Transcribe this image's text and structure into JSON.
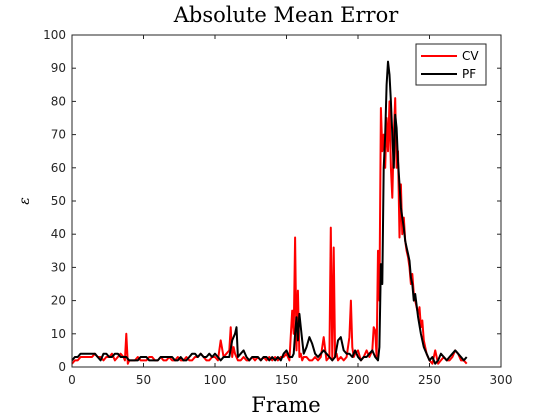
{
  "chart_data": {
    "type": "line",
    "title": "Absolute Mean Error",
    "xlabel": "Frame",
    "ylabel": "ε",
    "xlim": [
      0,
      300
    ],
    "ylim": [
      0,
      100
    ],
    "xticks": [
      0,
      50,
      100,
      150,
      200,
      250,
      300
    ],
    "yticks": [
      0,
      10,
      20,
      30,
      40,
      50,
      60,
      70,
      80,
      90,
      100
    ],
    "legend_position": "top-right",
    "grid": false,
    "series": [
      {
        "name": "CV",
        "color": "#ff0000",
        "x": [
          0,
          2,
          4,
          6,
          8,
          10,
          12,
          14,
          16,
          18,
          20,
          22,
          24,
          26,
          28,
          30,
          32,
          34,
          36,
          37,
          38,
          39,
          40,
          42,
          44,
          46,
          48,
          50,
          52,
          54,
          56,
          58,
          60,
          62,
          64,
          66,
          68,
          70,
          72,
          74,
          76,
          78,
          80,
          82,
          84,
          86,
          88,
          90,
          92,
          94,
          96,
          98,
          100,
          102,
          104,
          106,
          108,
          110,
          111,
          112,
          113,
          114,
          116,
          118,
          120,
          122,
          124,
          126,
          128,
          130,
          132,
          134,
          136,
          138,
          140,
          142,
          144,
          146,
          148,
          150,
          152,
          154,
          155,
          156,
          157,
          158,
          159,
          160,
          161,
          162,
          164,
          166,
          168,
          170,
          172,
          174,
          176,
          178,
          180,
          181,
          182,
          183,
          184,
          185,
          186,
          188,
          190,
          192,
          194,
          195,
          196,
          197,
          198,
          200,
          202,
          204,
          206,
          208,
          210,
          211,
          212,
          213,
          214,
          215,
          216,
          217,
          218,
          219,
          220,
          221,
          222,
          223,
          224,
          225,
          226,
          227,
          228,
          229,
          230,
          231,
          232,
          233,
          234,
          235,
          236,
          237,
          238,
          239,
          240,
          241,
          242,
          243,
          244,
          245,
          246,
          248,
          250,
          252,
          254,
          256,
          258,
          260,
          262,
          264,
          266,
          268,
          270,
          272,
          274,
          276
        ],
        "values": [
          1,
          2,
          2,
          3,
          3,
          3,
          3,
          3,
          4,
          3,
          3,
          2,
          3,
          3,
          4,
          2,
          3,
          4,
          3,
          2,
          10,
          1,
          2,
          2,
          2,
          3,
          2,
          2,
          2,
          3,
          3,
          2,
          2,
          3,
          2,
          2,
          3,
          2,
          2,
          3,
          2,
          2,
          3,
          2,
          2,
          3,
          3,
          4,
          3,
          2,
          2,
          3,
          3,
          2,
          8,
          3,
          4,
          5,
          12,
          3,
          6,
          4,
          2,
          2,
          3,
          2,
          2,
          3,
          2,
          3,
          2,
          3,
          2,
          3,
          2,
          3,
          2,
          3,
          3,
          4,
          2,
          17,
          10,
          39,
          5,
          23,
          3,
          4,
          2,
          3,
          3,
          2,
          2,
          3,
          2,
          3,
          9,
          2,
          3,
          42,
          2,
          36,
          3,
          4,
          2,
          3,
          2,
          3,
          9,
          20,
          6,
          3,
          4,
          5,
          2,
          3,
          5,
          3,
          5,
          12,
          11,
          3,
          35,
          20,
          78,
          65,
          70,
          60,
          75,
          65,
          80,
          60,
          51,
          70,
          81,
          60,
          65,
          39,
          55,
          40,
          45,
          38,
          35,
          33,
          30,
          25,
          28,
          22,
          20,
          18,
          16,
          18,
          12,
          14,
          8,
          4,
          2,
          1,
          5,
          1,
          2,
          3,
          2,
          2,
          3,
          5,
          4,
          2,
          2,
          1
        ]
      },
      {
        "name": "PF",
        "color": "#000000",
        "x": [
          0,
          2,
          4,
          6,
          8,
          10,
          12,
          14,
          16,
          18,
          20,
          22,
          24,
          26,
          28,
          30,
          32,
          34,
          36,
          38,
          40,
          42,
          44,
          46,
          48,
          50,
          52,
          54,
          56,
          58,
          60,
          62,
          64,
          66,
          68,
          70,
          72,
          74,
          76,
          78,
          80,
          82,
          84,
          86,
          88,
          90,
          92,
          94,
          96,
          98,
          100,
          102,
          104,
          106,
          108,
          110,
          112,
          114,
          115,
          116,
          118,
          120,
          122,
          124,
          126,
          128,
          130,
          132,
          134,
          136,
          138,
          140,
          142,
          144,
          146,
          148,
          150,
          152,
          154,
          155,
          156,
          157,
          158,
          159,
          160,
          161,
          162,
          164,
          166,
          168,
          170,
          172,
          174,
          176,
          178,
          180,
          182,
          184,
          186,
          188,
          190,
          192,
          194,
          196,
          198,
          200,
          202,
          204,
          206,
          208,
          210,
          212,
          214,
          215,
          216,
          217,
          218,
          219,
          220,
          221,
          222,
          223,
          224,
          225,
          226,
          227,
          228,
          229,
          230,
          231,
          232,
          233,
          234,
          235,
          236,
          237,
          238,
          239,
          240,
          242,
          244,
          246,
          248,
          250,
          252,
          254,
          256,
          258,
          260,
          262,
          264,
          266,
          268,
          270,
          272,
          274,
          276
        ],
        "values": [
          2,
          3,
          3,
          4,
          4,
          4,
          4,
          4,
          4,
          3,
          2,
          4,
          4,
          3,
          3,
          4,
          4,
          3,
          3,
          3,
          2,
          2,
          2,
          2,
          3,
          3,
          3,
          2,
          2,
          2,
          2,
          3,
          3,
          3,
          3,
          3,
          2,
          2,
          3,
          2,
          2,
          3,
          4,
          4,
          3,
          4,
          3,
          3,
          4,
          3,
          4,
          3,
          2,
          3,
          3,
          3,
          8,
          10,
          12,
          3,
          4,
          5,
          3,
          2,
          3,
          3,
          3,
          2,
          3,
          3,
          2,
          3,
          2,
          3,
          2,
          4,
          5,
          3,
          3,
          4,
          10,
          15,
          8,
          16,
          12,
          8,
          4,
          6,
          9,
          7,
          4,
          3,
          4,
          5,
          4,
          3,
          2,
          3,
          8,
          9,
          5,
          4,
          4,
          3,
          5,
          3,
          2,
          3,
          3,
          4,
          5,
          3,
          2,
          6,
          31,
          25,
          60,
          70,
          85,
          92,
          88,
          80,
          70,
          60,
          76,
          72,
          62,
          55,
          48,
          45,
          42,
          38,
          36,
          34,
          32,
          27,
          25,
          20,
          22,
          15,
          10,
          6,
          4,
          2,
          3,
          1,
          2,
          4,
          3,
          2,
          3,
          4,
          5,
          4,
          3,
          2,
          3
        ]
      }
    ]
  }
}
